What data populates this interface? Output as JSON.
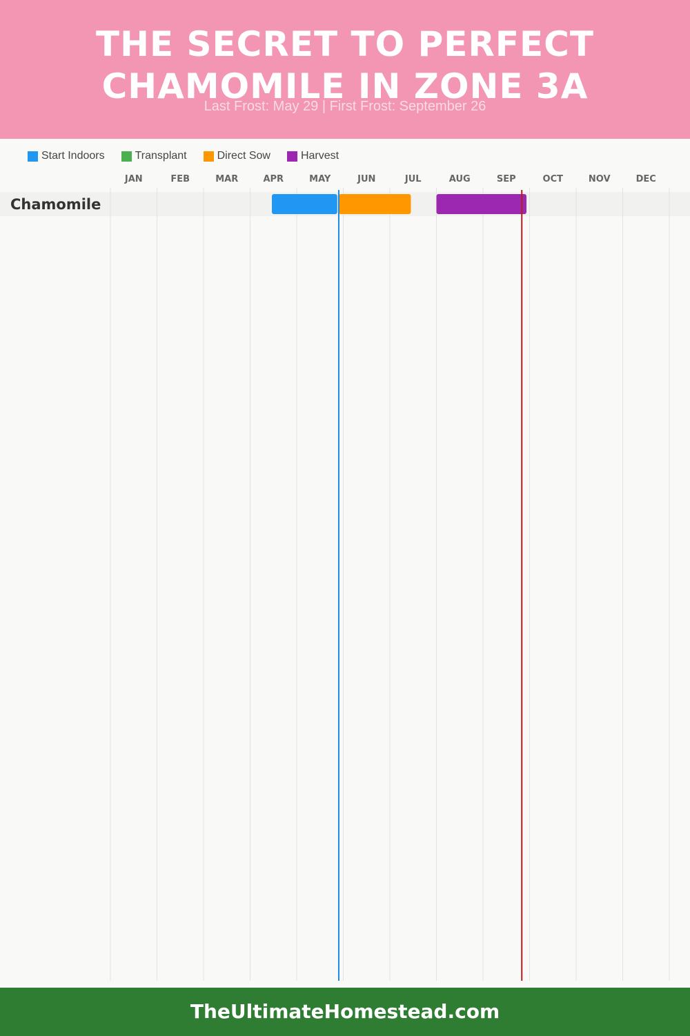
{
  "header": {
    "title_line1": "THE SECRET TO PERFECT",
    "title_line2": "CHAMOMILE IN ZONE 3A",
    "subtitle": "Last Frost: May 29 | First Frost: September 26",
    "background": "#f296b4"
  },
  "legend": [
    {
      "label": "Start Indoors",
      "color": "#2196f3"
    },
    {
      "label": "Transplant",
      "color": "#4caf50"
    },
    {
      "label": "Direct Sow",
      "color": "#ff9800"
    },
    {
      "label": "Harvest",
      "color": "#9c27b0"
    }
  ],
  "chart_data": {
    "type": "gantt",
    "months": [
      "JAN",
      "FEB",
      "MAR",
      "APR",
      "MAY",
      "JUN",
      "JUL",
      "AUG",
      "SEP",
      "OCT",
      "NOV",
      "DEC"
    ],
    "rows": [
      {
        "crop": "Chamomile",
        "tasks": [
          {
            "type": "Start Indoors",
            "start": "Apr 15",
            "end": "May 28",
            "color": "#2196f3"
          },
          {
            "type": "Direct Sow",
            "start": "May 29",
            "end": "Jul 15",
            "color": "#ff9800"
          },
          {
            "type": "Harvest",
            "start": "Aug 1",
            "end": "Sep 29",
            "color": "#9c27b0"
          }
        ]
      }
    ],
    "markers": [
      {
        "label": "Last Frost",
        "date": "May 29",
        "color": "#1e88e5"
      },
      {
        "label": "First Frost",
        "date": "Sep 26",
        "color": "#b71c1c"
      }
    ]
  },
  "footer": {
    "site": "TheUltimateHomestead.com",
    "background": "#2e7d32"
  }
}
